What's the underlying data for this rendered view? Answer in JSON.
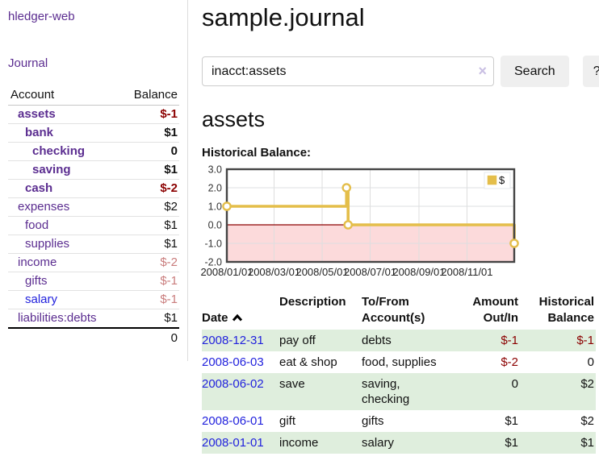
{
  "colors": {
    "accent_purple": "#5b2d90",
    "link_blue": "#2222dd",
    "negative_strong": "#8b0000",
    "negative_soft": "#c97c7c",
    "row_stripe_green": "#dfeedd",
    "chart_line_gold": "#e4be4a",
    "chart_negative_fill": "#fcdadb",
    "chart_zero_line": "#8b0000",
    "button_bg": "#efefef"
  },
  "brand": {
    "label": "hledger-web"
  },
  "sidebar": {
    "journal_link": "Journal",
    "accounts": {
      "header_account": "Account",
      "header_balance": "Balance",
      "rows": [
        {
          "name": "assets",
          "balance": "$-1",
          "indent": 1,
          "bold": true,
          "neg": "strong",
          "link": "purple"
        },
        {
          "name": "bank",
          "balance": "$1",
          "indent": 2,
          "bold": true,
          "neg": null,
          "link": "purple"
        },
        {
          "name": "checking",
          "balance": "0",
          "indent": 3,
          "bold": true,
          "neg": null,
          "link": "purple"
        },
        {
          "name": "saving",
          "balance": "$1",
          "indent": 3,
          "bold": true,
          "neg": null,
          "link": "purple"
        },
        {
          "name": "cash",
          "balance": "$-2",
          "indent": 2,
          "bold": true,
          "neg": "strong",
          "link": "purple"
        },
        {
          "name": "expenses",
          "balance": "$2",
          "indent": 1,
          "bold": false,
          "neg": null,
          "link": "purple"
        },
        {
          "name": "food",
          "balance": "$1",
          "indent": 2,
          "bold": false,
          "neg": null,
          "link": "purple"
        },
        {
          "name": "supplies",
          "balance": "$1",
          "indent": 2,
          "bold": false,
          "neg": null,
          "link": "purple"
        },
        {
          "name": "income",
          "balance": "$-2",
          "indent": 1,
          "bold": false,
          "neg": "soft",
          "link": "purple"
        },
        {
          "name": "gifts",
          "balance": "$-1",
          "indent": 2,
          "bold": false,
          "neg": "soft",
          "link": "purple"
        },
        {
          "name": "salary",
          "balance": "$-1",
          "indent": 2,
          "bold": false,
          "neg": "soft",
          "link": "blue"
        },
        {
          "name": "liabilities:debts",
          "balance": "$1",
          "indent": 1,
          "bold": false,
          "neg": null,
          "link": "purple"
        }
      ],
      "total": "0"
    }
  },
  "main": {
    "title": "sample.journal",
    "search": {
      "value": "inacct:assets",
      "clear_icon": "×",
      "search_button": "Search",
      "help_button": "?"
    },
    "account_heading": "assets",
    "chart_heading": "Historical Balance:"
  },
  "chart_data": {
    "type": "line",
    "step": true,
    "title": "Historical Balance:",
    "legend": {
      "label": "$",
      "position": "top-right"
    },
    "xlim": [
      "2008-01-01",
      "2008-12-31"
    ],
    "ylim": [
      -2,
      3
    ],
    "x_ticks": [
      "2008/01/01",
      "2008/03/01",
      "2008/05/01",
      "2008/07/01",
      "2008/09/01",
      "2008/11/01"
    ],
    "y_ticks": [
      3.0,
      2.0,
      1.0,
      0.0,
      -1.0,
      -2.0
    ],
    "grid": true,
    "series": [
      {
        "name": "$",
        "points": [
          {
            "x": "2008-01-01",
            "y": 1
          },
          {
            "x": "2008-06-01",
            "y": 2
          },
          {
            "x": "2008-06-03",
            "y": 0
          },
          {
            "x": "2008-12-31",
            "y": -1
          }
        ]
      }
    ]
  },
  "register": {
    "headers": {
      "date": "Date",
      "description": "Description",
      "accounts": "To/From\nAccount(s)",
      "amount": "Amount\nOut/In",
      "balance": "Historical\nBalance"
    },
    "rows": [
      {
        "date": "2008-12-31",
        "description": "pay off",
        "accounts": "debts",
        "amount": "$-1",
        "amount_neg": true,
        "balance": "$-1",
        "balance_neg": true
      },
      {
        "date": "2008-06-03",
        "description": "eat & shop",
        "accounts": "food, supplies",
        "amount": "$-2",
        "amount_neg": true,
        "balance": "0",
        "balance_neg": false
      },
      {
        "date": "2008-06-02",
        "description": "save",
        "accounts": "saving, checking",
        "amount": "0",
        "amount_neg": false,
        "balance": "$2",
        "balance_neg": false
      },
      {
        "date": "2008-06-01",
        "description": "gift",
        "accounts": "gifts",
        "amount": "$1",
        "amount_neg": false,
        "balance": "$2",
        "balance_neg": false
      },
      {
        "date": "2008-01-01",
        "description": "income",
        "accounts": "salary",
        "amount": "$1",
        "amount_neg": false,
        "balance": "$1",
        "balance_neg": false
      }
    ]
  }
}
